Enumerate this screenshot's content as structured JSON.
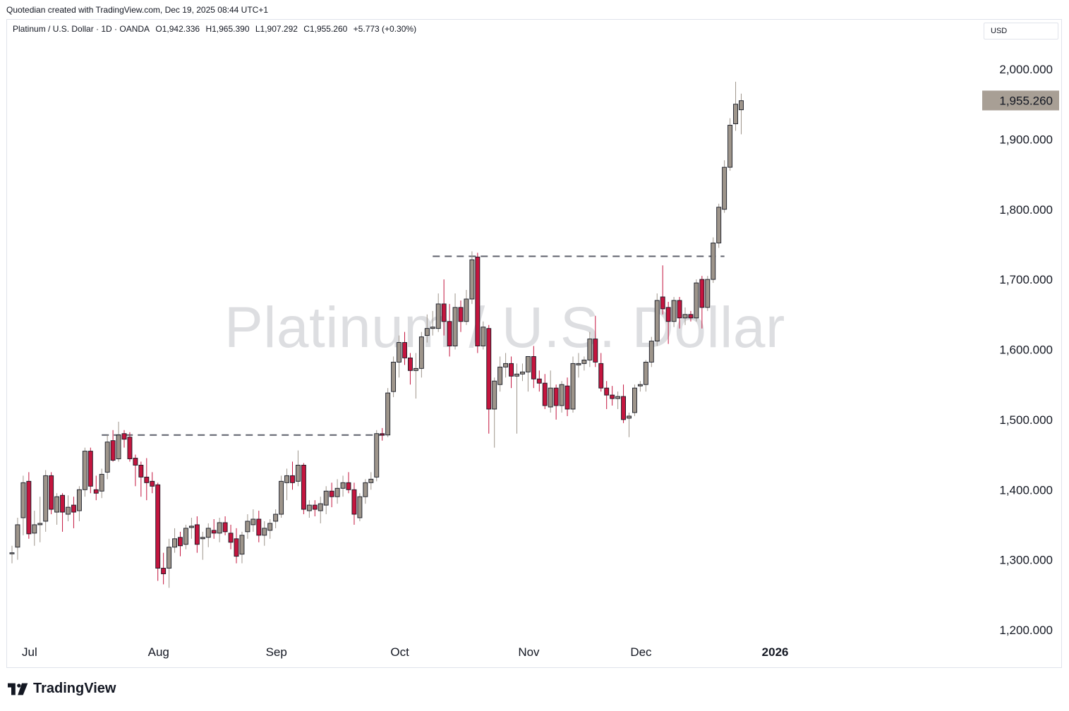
{
  "caption": "Quotedian created with TradingView.com, Dec 19, 2025 08:44 UTC+1",
  "legend": {
    "symbol": "Platinum / U.S. Dollar · 1D · OANDA",
    "open": "O1,942.336",
    "high": "H1,965.390",
    "low": "L1,907.292",
    "close": "C1,955.260",
    "change": "+5.773 (+0.30%)"
  },
  "currency": "USD",
  "watermark": "Platinum / U.S. Dollar",
  "footer": {
    "brand": "TradingView"
  },
  "colors": {
    "up": "#9e958b",
    "down": "#c4153e",
    "price_tag": "#a89f95",
    "grid_text": "#131722"
  },
  "chart_data": {
    "type": "candlestick",
    "title": "Platinum / U.S. Dollar",
    "ylim": [
      1150,
      2030
    ],
    "y_ticks": [
      "1,200.000",
      "1,300.000",
      "1,400.000",
      "1,500.000",
      "1,600.000",
      "1,700.000",
      "1,800.000",
      "1,900.000",
      "2,000.000"
    ],
    "y_tick_values": [
      1200,
      1300,
      1400,
      1500,
      1600,
      1700,
      1800,
      1900,
      2000
    ],
    "x_ticks": [
      "Jul",
      "Aug",
      "Sep",
      "Oct",
      "Nov",
      "Dec",
      "2026"
    ],
    "x_tick_dates": [
      "2025-07-01",
      "2025-08-01",
      "2025-09-01",
      "2025-10-01",
      "2025-11-01",
      "2025-12-01",
      "2026-01-01"
    ],
    "last_price": "1,955.260",
    "last_price_value": 1955.26,
    "horizontal_levels": [
      {
        "value": 1478,
        "from": "2025-07-21",
        "to": "2025-09-30"
      },
      {
        "value": 1733,
        "from": "2025-10-10",
        "to": "2025-12-23"
      }
    ],
    "candles": [
      {
        "d": "2025-06-27",
        "o": 1310,
        "h": 1320,
        "l": 1295,
        "c": 1310
      },
      {
        "d": "2025-06-30",
        "o": 1318,
        "h": 1360,
        "l": 1300,
        "c": 1350
      },
      {
        "d": "2025-07-01",
        "o": 1360,
        "h": 1420,
        "l": 1335,
        "c": 1410
      },
      {
        "d": "2025-07-02",
        "o": 1412,
        "h": 1425,
        "l": 1330,
        "c": 1337
      },
      {
        "d": "2025-07-03",
        "o": 1338,
        "h": 1370,
        "l": 1320,
        "c": 1350
      },
      {
        "d": "2025-07-04",
        "o": 1350,
        "h": 1390,
        "l": 1325,
        "c": 1352
      },
      {
        "d": "2025-07-07",
        "o": 1355,
        "h": 1428,
        "l": 1340,
        "c": 1420
      },
      {
        "d": "2025-07-08",
        "o": 1420,
        "h": 1425,
        "l": 1365,
        "c": 1372
      },
      {
        "d": "2025-07-09",
        "o": 1368,
        "h": 1395,
        "l": 1350,
        "c": 1390
      },
      {
        "d": "2025-07-10",
        "o": 1392,
        "h": 1395,
        "l": 1340,
        "c": 1368
      },
      {
        "d": "2025-07-11",
        "o": 1365,
        "h": 1392,
        "l": 1355,
        "c": 1375
      },
      {
        "d": "2025-07-14",
        "o": 1378,
        "h": 1390,
        "l": 1345,
        "c": 1368
      },
      {
        "d": "2025-07-15",
        "o": 1370,
        "h": 1405,
        "l": 1355,
        "c": 1400
      },
      {
        "d": "2025-07-16",
        "o": 1400,
        "h": 1460,
        "l": 1390,
        "c": 1455
      },
      {
        "d": "2025-07-17",
        "o": 1455,
        "h": 1460,
        "l": 1395,
        "c": 1405
      },
      {
        "d": "2025-07-18",
        "o": 1400,
        "h": 1420,
        "l": 1385,
        "c": 1395
      },
      {
        "d": "2025-07-21",
        "o": 1398,
        "h": 1430,
        "l": 1388,
        "c": 1422
      },
      {
        "d": "2025-07-22",
        "o": 1425,
        "h": 1478,
        "l": 1415,
        "c": 1468
      },
      {
        "d": "2025-07-23",
        "o": 1470,
        "h": 1485,
        "l": 1440,
        "c": 1442
      },
      {
        "d": "2025-07-24",
        "o": 1444,
        "h": 1497,
        "l": 1440,
        "c": 1478
      },
      {
        "d": "2025-07-25",
        "o": 1480,
        "h": 1485,
        "l": 1460,
        "c": 1472
      },
      {
        "d": "2025-07-28",
        "o": 1475,
        "h": 1482,
        "l": 1440,
        "c": 1444
      },
      {
        "d": "2025-07-29",
        "o": 1445,
        "h": 1450,
        "l": 1405,
        "c": 1435
      },
      {
        "d": "2025-07-30",
        "o": 1435,
        "h": 1440,
        "l": 1390,
        "c": 1418
      },
      {
        "d": "2025-07-31",
        "o": 1418,
        "h": 1445,
        "l": 1385,
        "c": 1410
      },
      {
        "d": "2025-08-01",
        "o": 1412,
        "h": 1425,
        "l": 1395,
        "c": 1405
      },
      {
        "d": "2025-08-04",
        "o": 1407,
        "h": 1410,
        "l": 1270,
        "c": 1288
      },
      {
        "d": "2025-08-05",
        "o": 1288,
        "h": 1310,
        "l": 1265,
        "c": 1280
      },
      {
        "d": "2025-08-06",
        "o": 1288,
        "h": 1330,
        "l": 1260,
        "c": 1318
      },
      {
        "d": "2025-08-07",
        "o": 1318,
        "h": 1345,
        "l": 1310,
        "c": 1330
      },
      {
        "d": "2025-08-08",
        "o": 1332,
        "h": 1340,
        "l": 1305,
        "c": 1320
      },
      {
        "d": "2025-08-11",
        "o": 1322,
        "h": 1350,
        "l": 1315,
        "c": 1345
      },
      {
        "d": "2025-08-12",
        "o": 1346,
        "h": 1360,
        "l": 1330,
        "c": 1348
      },
      {
        "d": "2025-08-13",
        "o": 1350,
        "h": 1362,
        "l": 1310,
        "c": 1322
      },
      {
        "d": "2025-08-14",
        "o": 1330,
        "h": 1340,
        "l": 1300,
        "c": 1332
      },
      {
        "d": "2025-08-15",
        "o": 1332,
        "h": 1352,
        "l": 1318,
        "c": 1345
      },
      {
        "d": "2025-08-18",
        "o": 1342,
        "h": 1358,
        "l": 1330,
        "c": 1338
      },
      {
        "d": "2025-08-19",
        "o": 1338,
        "h": 1360,
        "l": 1325,
        "c": 1353
      },
      {
        "d": "2025-08-20",
        "o": 1353,
        "h": 1362,
        "l": 1335,
        "c": 1340
      },
      {
        "d": "2025-08-21",
        "o": 1338,
        "h": 1350,
        "l": 1315,
        "c": 1325
      },
      {
        "d": "2025-08-22",
        "o": 1330,
        "h": 1345,
        "l": 1295,
        "c": 1305
      },
      {
        "d": "2025-08-25",
        "o": 1308,
        "h": 1340,
        "l": 1295,
        "c": 1335
      },
      {
        "d": "2025-08-26",
        "o": 1340,
        "h": 1365,
        "l": 1330,
        "c": 1355
      },
      {
        "d": "2025-08-27",
        "o": 1350,
        "h": 1372,
        "l": 1340,
        "c": 1358
      },
      {
        "d": "2025-08-28",
        "o": 1358,
        "h": 1370,
        "l": 1325,
        "c": 1335
      },
      {
        "d": "2025-08-29",
        "o": 1335,
        "h": 1355,
        "l": 1320,
        "c": 1345
      },
      {
        "d": "2025-09-01",
        "o": 1342,
        "h": 1358,
        "l": 1330,
        "c": 1352
      },
      {
        "d": "2025-09-02",
        "o": 1355,
        "h": 1372,
        "l": 1345,
        "c": 1365
      },
      {
        "d": "2025-09-03",
        "o": 1365,
        "h": 1420,
        "l": 1360,
        "c": 1412
      },
      {
        "d": "2025-09-04",
        "o": 1410,
        "h": 1430,
        "l": 1385,
        "c": 1420
      },
      {
        "d": "2025-09-05",
        "o": 1420,
        "h": 1440,
        "l": 1400,
        "c": 1410
      },
      {
        "d": "2025-09-08",
        "o": 1412,
        "h": 1456,
        "l": 1405,
        "c": 1435
      },
      {
        "d": "2025-09-09",
        "o": 1435,
        "h": 1438,
        "l": 1365,
        "c": 1372
      },
      {
        "d": "2025-09-10",
        "o": 1370,
        "h": 1385,
        "l": 1360,
        "c": 1378
      },
      {
        "d": "2025-09-11",
        "o": 1378,
        "h": 1385,
        "l": 1362,
        "c": 1372
      },
      {
        "d": "2025-09-12",
        "o": 1370,
        "h": 1390,
        "l": 1352,
        "c": 1380
      },
      {
        "d": "2025-09-15",
        "o": 1378,
        "h": 1405,
        "l": 1365,
        "c": 1398
      },
      {
        "d": "2025-09-16",
        "o": 1398,
        "h": 1410,
        "l": 1375,
        "c": 1390
      },
      {
        "d": "2025-09-17",
        "o": 1390,
        "h": 1415,
        "l": 1380,
        "c": 1402
      },
      {
        "d": "2025-09-18",
        "o": 1402,
        "h": 1420,
        "l": 1390,
        "c": 1410
      },
      {
        "d": "2025-09-19",
        "o": 1410,
        "h": 1425,
        "l": 1395,
        "c": 1400
      },
      {
        "d": "2025-09-22",
        "o": 1400,
        "h": 1410,
        "l": 1350,
        "c": 1365
      },
      {
        "d": "2025-09-23",
        "o": 1360,
        "h": 1395,
        "l": 1355,
        "c": 1390
      },
      {
        "d": "2025-09-24",
        "o": 1390,
        "h": 1415,
        "l": 1380,
        "c": 1410
      },
      {
        "d": "2025-09-25",
        "o": 1410,
        "h": 1425,
        "l": 1400,
        "c": 1415
      },
      {
        "d": "2025-09-26",
        "o": 1418,
        "h": 1485,
        "l": 1412,
        "c": 1480
      },
      {
        "d": "2025-09-29",
        "o": 1480,
        "h": 1488,
        "l": 1470,
        "c": 1478
      },
      {
        "d": "2025-09-30",
        "o": 1478,
        "h": 1545,
        "l": 1475,
        "c": 1538
      },
      {
        "d": "2025-10-01",
        "o": 1540,
        "h": 1590,
        "l": 1532,
        "c": 1582
      },
      {
        "d": "2025-10-02",
        "o": 1582,
        "h": 1620,
        "l": 1560,
        "c": 1610
      },
      {
        "d": "2025-10-03",
        "o": 1610,
        "h": 1625,
        "l": 1578,
        "c": 1588
      },
      {
        "d": "2025-10-06",
        "o": 1588,
        "h": 1595,
        "l": 1550,
        "c": 1570
      },
      {
        "d": "2025-10-07",
        "o": 1570,
        "h": 1595,
        "l": 1530,
        "c": 1573
      },
      {
        "d": "2025-10-08",
        "o": 1573,
        "h": 1625,
        "l": 1560,
        "c": 1618
      },
      {
        "d": "2025-10-09",
        "o": 1620,
        "h": 1650,
        "l": 1610,
        "c": 1630
      },
      {
        "d": "2025-10-10",
        "o": 1630,
        "h": 1655,
        "l": 1620,
        "c": 1632
      },
      {
        "d": "2025-10-13",
        "o": 1630,
        "h": 1680,
        "l": 1625,
        "c": 1665
      },
      {
        "d": "2025-10-14",
        "o": 1665,
        "h": 1700,
        "l": 1620,
        "c": 1640
      },
      {
        "d": "2025-10-15",
        "o": 1640,
        "h": 1665,
        "l": 1590,
        "c": 1605
      },
      {
        "d": "2025-10-16",
        "o": 1605,
        "h": 1680,
        "l": 1600,
        "c": 1660
      },
      {
        "d": "2025-10-17",
        "o": 1660,
        "h": 1670,
        "l": 1625,
        "c": 1640
      },
      {
        "d": "2025-10-20",
        "o": 1640,
        "h": 1685,
        "l": 1635,
        "c": 1672
      },
      {
        "d": "2025-10-21",
        "o": 1672,
        "h": 1740,
        "l": 1665,
        "c": 1728
      },
      {
        "d": "2025-10-22",
        "o": 1732,
        "h": 1738,
        "l": 1595,
        "c": 1605
      },
      {
        "d": "2025-10-23",
        "o": 1605,
        "h": 1640,
        "l": 1600,
        "c": 1632
      },
      {
        "d": "2025-10-24",
        "o": 1630,
        "h": 1635,
        "l": 1480,
        "c": 1515
      },
      {
        "d": "2025-10-27",
        "o": 1515,
        "h": 1560,
        "l": 1460,
        "c": 1555
      },
      {
        "d": "2025-10-28",
        "o": 1550,
        "h": 1590,
        "l": 1540,
        "c": 1575
      },
      {
        "d": "2025-10-29",
        "o": 1575,
        "h": 1595,
        "l": 1560,
        "c": 1580
      },
      {
        "d": "2025-10-30",
        "o": 1580,
        "h": 1590,
        "l": 1545,
        "c": 1562
      },
      {
        "d": "2025-10-31",
        "o": 1562,
        "h": 1580,
        "l": 1480,
        "c": 1565
      },
      {
        "d": "2025-11-03",
        "o": 1565,
        "h": 1580,
        "l": 1555,
        "c": 1568
      },
      {
        "d": "2025-11-04",
        "o": 1568,
        "h": 1590,
        "l": 1540,
        "c": 1590
      },
      {
        "d": "2025-11-05",
        "o": 1590,
        "h": 1605,
        "l": 1545,
        "c": 1558
      },
      {
        "d": "2025-11-06",
        "o": 1558,
        "h": 1570,
        "l": 1540,
        "c": 1552
      },
      {
        "d": "2025-11-07",
        "o": 1552,
        "h": 1565,
        "l": 1515,
        "c": 1520
      },
      {
        "d": "2025-11-10",
        "o": 1518,
        "h": 1570,
        "l": 1510,
        "c": 1545
      },
      {
        "d": "2025-11-11",
        "o": 1545,
        "h": 1550,
        "l": 1500,
        "c": 1520
      },
      {
        "d": "2025-11-12",
        "o": 1520,
        "h": 1555,
        "l": 1510,
        "c": 1550
      },
      {
        "d": "2025-11-13",
        "o": 1548,
        "h": 1560,
        "l": 1505,
        "c": 1515
      },
      {
        "d": "2025-11-14",
        "o": 1515,
        "h": 1590,
        "l": 1510,
        "c": 1580
      },
      {
        "d": "2025-11-17",
        "o": 1578,
        "h": 1595,
        "l": 1560,
        "c": 1580
      },
      {
        "d": "2025-11-18",
        "o": 1580,
        "h": 1590,
        "l": 1570,
        "c": 1585
      },
      {
        "d": "2025-11-19",
        "o": 1585,
        "h": 1625,
        "l": 1575,
        "c": 1615
      },
      {
        "d": "2025-11-20",
        "o": 1615,
        "h": 1648,
        "l": 1575,
        "c": 1582
      },
      {
        "d": "2025-11-21",
        "o": 1580,
        "h": 1595,
        "l": 1540,
        "c": 1545
      },
      {
        "d": "2025-11-24",
        "o": 1545,
        "h": 1555,
        "l": 1515,
        "c": 1535
      },
      {
        "d": "2025-11-25",
        "o": 1535,
        "h": 1548,
        "l": 1520,
        "c": 1530
      },
      {
        "d": "2025-11-26",
        "o": 1530,
        "h": 1540,
        "l": 1515,
        "c": 1533
      },
      {
        "d": "2025-11-27",
        "o": 1533,
        "h": 1550,
        "l": 1495,
        "c": 1500
      },
      {
        "d": "2025-11-28",
        "o": 1502,
        "h": 1510,
        "l": 1475,
        "c": 1505
      },
      {
        "d": "2025-12-01",
        "o": 1510,
        "h": 1550,
        "l": 1505,
        "c": 1545
      },
      {
        "d": "2025-12-02",
        "o": 1548,
        "h": 1555,
        "l": 1540,
        "c": 1550
      },
      {
        "d": "2025-12-03",
        "o": 1550,
        "h": 1585,
        "l": 1540,
        "c": 1582
      },
      {
        "d": "2025-12-04",
        "o": 1582,
        "h": 1618,
        "l": 1575,
        "c": 1612
      },
      {
        "d": "2025-12-05",
        "o": 1612,
        "h": 1680,
        "l": 1605,
        "c": 1670
      },
      {
        "d": "2025-12-08",
        "o": 1675,
        "h": 1720,
        "l": 1650,
        "c": 1658
      },
      {
        "d": "2025-12-09",
        "o": 1660,
        "h": 1668,
        "l": 1608,
        "c": 1640
      },
      {
        "d": "2025-12-10",
        "o": 1640,
        "h": 1675,
        "l": 1632,
        "c": 1670
      },
      {
        "d": "2025-12-11",
        "o": 1670,
        "h": 1675,
        "l": 1630,
        "c": 1645
      },
      {
        "d": "2025-12-12",
        "o": 1645,
        "h": 1660,
        "l": 1635,
        "c": 1650
      },
      {
        "d": "2025-12-15",
        "o": 1650,
        "h": 1655,
        "l": 1640,
        "c": 1645
      },
      {
        "d": "2025-12-16",
        "o": 1645,
        "h": 1700,
        "l": 1640,
        "c": 1695
      },
      {
        "d": "2025-12-17",
        "o": 1700,
        "h": 1705,
        "l": 1630,
        "c": 1660
      },
      {
        "d": "2025-12-18",
        "o": 1660,
        "h": 1705,
        "l": 1655,
        "c": 1700
      },
      {
        "d": "2025-12-19",
        "o": 1700,
        "h": 1760,
        "l": 1695,
        "c": 1752
      },
      {
        "d": "2025-12-22",
        "o": 1752,
        "h": 1808,
        "l": 1745,
        "c": 1803
      },
      {
        "d": "2025-12-23",
        "o": 1800,
        "h": 1870,
        "l": 1795,
        "c": 1860
      },
      {
        "d": "2025-12-24",
        "o": 1860,
        "h": 1930,
        "l": 1855,
        "c": 1920
      },
      {
        "d": "2025-12-25",
        "o": 1922,
        "h": 1982,
        "l": 1912,
        "c": 1950
      },
      {
        "d": "2025-12-26",
        "o": 1942,
        "h": 1965,
        "l": 1907,
        "c": 1955
      }
    ]
  }
}
